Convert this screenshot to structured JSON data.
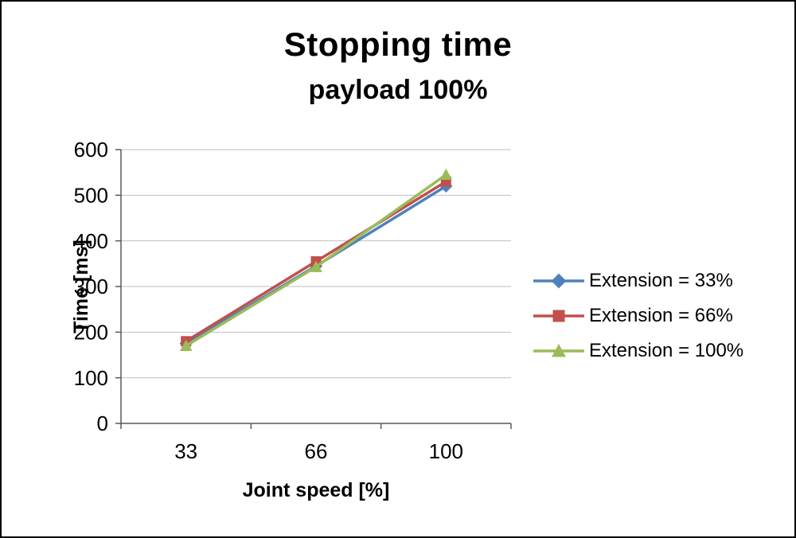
{
  "chart_data": {
    "type": "line",
    "title": "Stopping time",
    "subtitle": "payload 100%",
    "xlabel": "Joint speed [%]",
    "ylabel": "Time [ms]",
    "categories": [
      "33",
      "66",
      "100"
    ],
    "ylim": [
      0,
      600
    ],
    "ytick_step": 100,
    "grid": true,
    "legend_position": "right",
    "series": [
      {
        "name": "Extension = 33%",
        "marker": "diamond",
        "color": "#4F81BD",
        "values": [
          175,
          345,
          520
        ]
      },
      {
        "name": "Extension = 66%",
        "marker": "square",
        "color": "#C0504D",
        "values": [
          180,
          355,
          530
        ]
      },
      {
        "name": "Extension = 100%",
        "marker": "triangle",
        "color": "#9BBB59",
        "values": [
          170,
          343,
          545
        ]
      }
    ],
    "colors": {
      "gridline": "#BFBFBF",
      "axis": "#595959",
      "text": "#000000"
    }
  }
}
